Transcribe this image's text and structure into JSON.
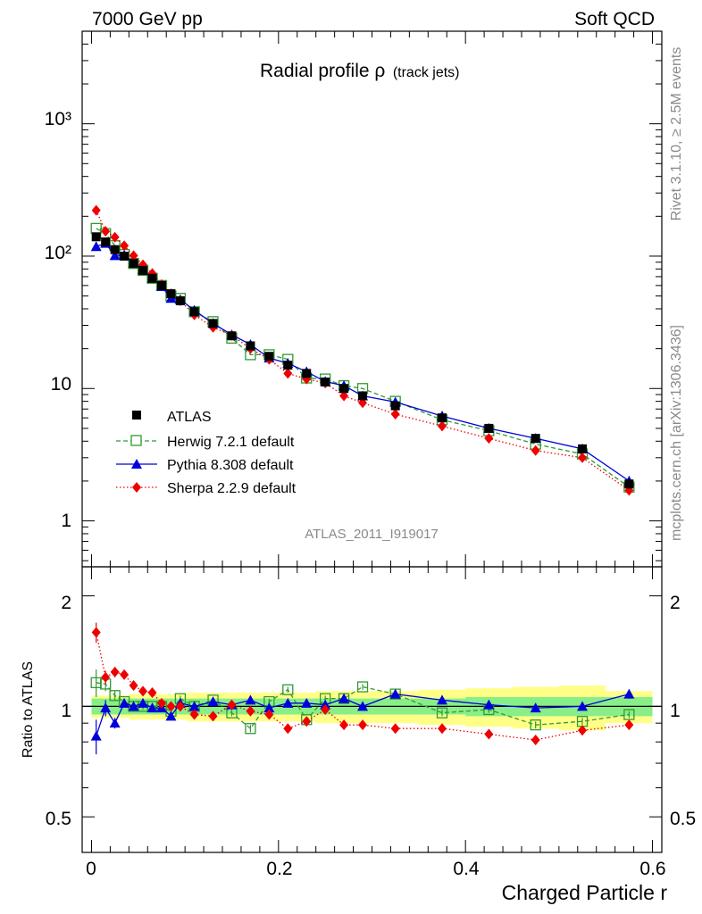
{
  "header": {
    "left": "7000 GeV pp",
    "right": "Soft QCD"
  },
  "title": {
    "main": "Radial profile ρ",
    "sub": "(track jets)"
  },
  "side_labels": {
    "top": "Rivet 3.1.10, ≥ 2.5M events",
    "bottom": "mcplots.cern.ch [arXiv:1306.3436]"
  },
  "analysis_id": "ATLAS_2011_I919017",
  "legend": [
    {
      "label": "ATLAS",
      "color": "#000000",
      "marker": "filled-square",
      "line": "none"
    },
    {
      "label": "Herwig 7.2.1 default",
      "color": "#339933",
      "marker": "open-square",
      "line": "dashed"
    },
    {
      "label": "Pythia 8.308 default",
      "color": "#0000dd",
      "marker": "filled-triangle",
      "line": "solid"
    },
    {
      "label": "Sherpa 2.2.9 default",
      "color": "#ee0000",
      "marker": "filled-diamond",
      "line": "dotted"
    }
  ],
  "top_ticks": [
    "1",
    "10",
    "10²",
    "10³"
  ],
  "ratio_ticks": [
    "0.5",
    "1",
    "2"
  ],
  "x_ticks": [
    "0",
    "0.2",
    "0.4",
    "0.6"
  ],
  "ratio_ylabel": "Ratio to ATLAS",
  "xlabel": "Charged Particle r",
  "chart_data": {
    "type": "line",
    "x": [
      0.005,
      0.015,
      0.025,
      0.035,
      0.045,
      0.055,
      0.065,
      0.075,
      0.085,
      0.095,
      0.11,
      0.13,
      0.15,
      0.17,
      0.19,
      0.21,
      0.23,
      0.25,
      0.27,
      0.29,
      0.325,
      0.375,
      0.425,
      0.475,
      0.525,
      0.575
    ],
    "xlim": [
      -0.01,
      0.61
    ],
    "main_panel": {
      "ylog": true,
      "ylim": [
        0.45,
        5000
      ],
      "series": [
        {
          "name": "ATLAS",
          "values": [
            140,
            128,
            112,
            100,
            88,
            78,
            68,
            60,
            52,
            46,
            38,
            31,
            25,
            21,
            17.5,
            15,
            13,
            11.2,
            10,
            8.8,
            7.4,
            6,
            5,
            4.2,
            3.5,
            1.9
          ]
        },
        {
          "name": "Herwig 7.2.1 default",
          "values": [
            162,
            148,
            120,
            103,
            88,
            78,
            68,
            60,
            50,
            48,
            38,
            32,
            24,
            18,
            18,
            16.6,
            12,
            11.8,
            10.5,
            10,
            8,
            5.8,
            4.8,
            3.8,
            3.2,
            1.8
          ]
        },
        {
          "name": "Pythia 8.308 default",
          "values": [
            118,
            125,
            101,
            102,
            89,
            79,
            68,
            59,
            48,
            47,
            39,
            31,
            25.5,
            21.5,
            17,
            15.5,
            13.4,
            11.3,
            10.5,
            8.8,
            7.9,
            6.2,
            5,
            4.2,
            3.5,
            2
          ]
        },
        {
          "name": "Sherpa 2.2.9 default",
          "values": [
            222,
            154,
            139,
            120,
            101,
            86,
            74,
            61,
            52,
            46,
            36,
            29,
            25.2,
            20,
            16.6,
            13,
            11.8,
            11,
            8.8,
            7.8,
            6.4,
            5.2,
            4.2,
            3.4,
            3,
            1.7
          ]
        }
      ]
    },
    "ratio_panel": {
      "ylog": true,
      "ylim": [
        0.4,
        2.4
      ],
      "reference_line": 1,
      "uncertainty_bands": {
        "inner_half_width": [
          0.05,
          0.05,
          0.05,
          0.05,
          0.05,
          0.05,
          0.05,
          0.05,
          0.05,
          0.05,
          0.05,
          0.05,
          0.05,
          0.05,
          0.05,
          0.05,
          0.05,
          0.05,
          0.05,
          0.05,
          0.05,
          0.05,
          0.06,
          0.06,
          0.06,
          0.06
        ],
        "outer_half_width": [
          0.07,
          0.07,
          0.07,
          0.07,
          0.08,
          0.08,
          0.08,
          0.08,
          0.08,
          0.08,
          0.09,
          0.09,
          0.09,
          0.09,
          0.09,
          0.09,
          0.09,
          0.1,
          0.1,
          0.1,
          0.1,
          0.11,
          0.12,
          0.13,
          0.14,
          0.1
        ]
      },
      "series": [
        {
          "name": "Herwig 7.2.1 default",
          "values": [
            1.16,
            1.15,
            1.07,
            1.03,
            1.0,
            1.0,
            1.0,
            1.0,
            0.97,
            1.05,
            1.0,
            1.04,
            0.96,
            0.87,
            1.03,
            1.11,
            0.92,
            1.05,
            1.05,
            1.13,
            1.08,
            0.96,
            0.98,
            0.89,
            0.91,
            0.95
          ],
          "errors": [
            0.1,
            0.05,
            0.03,
            0.02,
            0.02,
            0.02,
            0.02,
            0.02,
            0.02,
            0.02,
            0.02,
            0.02,
            0.02,
            0.02,
            0.02,
            0.02,
            0.02,
            0.02,
            0.02,
            0.02,
            0.02,
            0.02,
            0.02,
            0.02,
            0.02,
            0.02
          ]
        },
        {
          "name": "Pythia 8.308 default",
          "values": [
            0.83,
            0.99,
            0.9,
            1.02,
            1.0,
            1.02,
            0.99,
            0.99,
            0.94,
            1.02,
            1.0,
            1.03,
            1.01,
            1.04,
            0.99,
            1.02,
            1.02,
            1.01,
            1.05,
            1.0,
            1.08,
            1.04,
            1.01,
            0.99,
            1.0,
            1.08
          ],
          "errors": [
            0.09,
            0.05,
            0.03,
            0.02,
            0.02,
            0.02,
            0.02,
            0.02,
            0.02,
            0.02,
            0.02,
            0.02,
            0.02,
            0.02,
            0.02,
            0.02,
            0.02,
            0.02,
            0.02,
            0.02,
            0.02,
            0.02,
            0.02,
            0.02,
            0.02,
            0.03
          ]
        },
        {
          "name": "Sherpa 2.2.9 default",
          "values": [
            1.59,
            1.2,
            1.24,
            1.22,
            1.14,
            1.1,
            1.09,
            1.02,
            1.0,
            1.0,
            0.95,
            0.94,
            1.01,
            0.97,
            0.95,
            0.87,
            0.91,
            0.98,
            0.89,
            0.89,
            0.87,
            0.87,
            0.84,
            0.81,
            0.86,
            0.89
          ],
          "errors": [
            0.1,
            0.05,
            0.04,
            0.03,
            0.03,
            0.02,
            0.02,
            0.02,
            0.02,
            0.02,
            0.02,
            0.02,
            0.02,
            0.02,
            0.02,
            0.02,
            0.02,
            0.02,
            0.02,
            0.02,
            0.02,
            0.02,
            0.02,
            0.02,
            0.02,
            0.02
          ]
        }
      ]
    }
  }
}
